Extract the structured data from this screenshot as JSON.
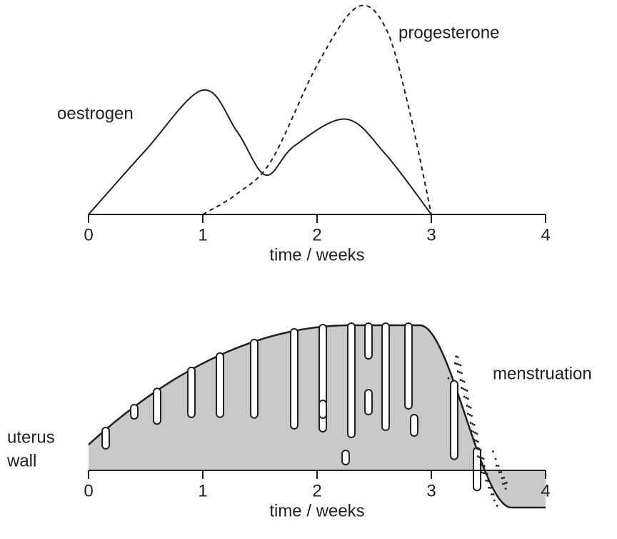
{
  "chart_data": [
    {
      "type": "line",
      "xlabel": "time / weeks",
      "xlim": [
        0,
        4
      ],
      "xticks": [
        0,
        1,
        2,
        3,
        4
      ],
      "ylim": [
        0,
        100
      ],
      "series": [
        {
          "name": "oestrogen",
          "color": "#231f20",
          "dash": false,
          "x": [
            0,
            0.5,
            1,
            1.3,
            1.55,
            1.8,
            2.25,
            2.6,
            3
          ],
          "values": [
            0,
            31,
            60,
            40,
            19,
            33,
            46,
            29,
            0
          ]
        },
        {
          "name": "progesterone",
          "color": "#231f20",
          "dash": true,
          "x": [
            1,
            1.3,
            1.6,
            2,
            2.35,
            2.6,
            2.8,
            3
          ],
          "values": [
            0,
            10,
            26,
            72,
            100,
            90,
            52,
            0
          ]
        }
      ]
    },
    {
      "type": "uterus",
      "xlabel": "time / weeks",
      "xlim": [
        0,
        4
      ],
      "xticks": [
        0,
        1,
        2,
        3,
        4
      ],
      "labels": [
        "uterus",
        "wall",
        "menstruation"
      ]
    }
  ]
}
